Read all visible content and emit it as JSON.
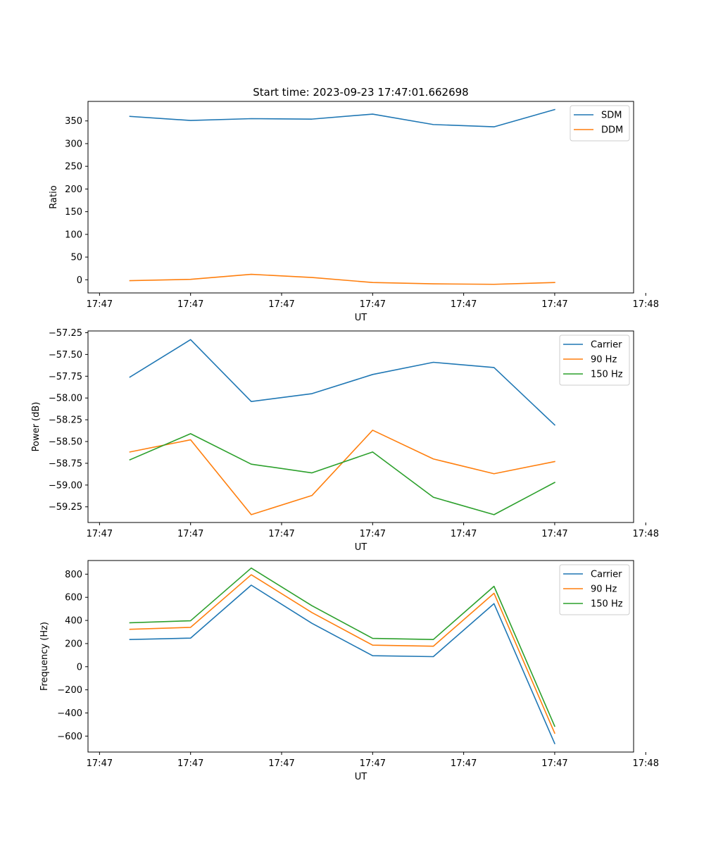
{
  "figure": {
    "title": "Start time: 2023-09-23 17:47:01.662698"
  },
  "chart_data": [
    {
      "type": "line",
      "title": "Start time: 2023-09-23 17:47:01.662698",
      "xlabel": "UT",
      "ylabel": "Ratio",
      "x": [
        1,
        2,
        3,
        4,
        5,
        6,
        7,
        8
      ],
      "xlim": [
        0.31,
        9.3
      ],
      "xticks": [
        0.5,
        2.0,
        3.5,
        5.0,
        6.5,
        8.0,
        9.5
      ],
      "xtick_labels": [
        "17:47",
        "17:47",
        "17:47",
        "17:47",
        "17:47",
        "17:47",
        "17:48"
      ],
      "ylim": [
        -29,
        393
      ],
      "yticks": [
        0,
        50,
        100,
        150,
        200,
        250,
        300,
        350
      ],
      "ytick_labels": [
        "0",
        "50",
        "100",
        "150",
        "200",
        "250",
        "300",
        "350"
      ],
      "legend": "top-right",
      "grid": false,
      "series": [
        {
          "name": "SDM",
          "color": "#1f77b4",
          "values": [
            360,
            351,
            355,
            354,
            365,
            342,
            337,
            375
          ]
        },
        {
          "name": "DDM",
          "color": "#ff7f0e",
          "values": [
            -2,
            1,
            12,
            5,
            -6,
            -9,
            -10,
            -6
          ]
        }
      ]
    },
    {
      "type": "line",
      "xlabel": "UT",
      "ylabel": "Power (dB)",
      "x": [
        1,
        2,
        3,
        4,
        5,
        6,
        7,
        8
      ],
      "xlim": [
        0.31,
        9.3
      ],
      "xticks": [
        0.5,
        2.0,
        3.5,
        5.0,
        6.5,
        8.0,
        9.5
      ],
      "xtick_labels": [
        "17:47",
        "17:47",
        "17:47",
        "17:47",
        "17:47",
        "17:47",
        "17:48"
      ],
      "ylim": [
        -59.43,
        -57.23
      ],
      "yticks": [
        -57.25,
        -57.5,
        -57.75,
        -58.0,
        -58.25,
        -58.5,
        -58.75,
        -59.0,
        -59.25
      ],
      "ytick_labels": [
        "−57.25",
        "−57.50",
        "−57.75",
        "−58.00",
        "−58.25",
        "−58.50",
        "−58.75",
        "−59.00",
        "−59.25"
      ],
      "legend": "top-right",
      "grid": false,
      "series": [
        {
          "name": "Carrier",
          "color": "#1f77b4",
          "values": [
            -57.76,
            -57.33,
            -58.04,
            -57.95,
            -57.73,
            -57.59,
            -57.65,
            -58.31
          ]
        },
        {
          "name": "90 Hz",
          "color": "#ff7f0e",
          "values": [
            -58.62,
            -58.48,
            -59.34,
            -59.12,
            -58.37,
            -58.7,
            -58.87,
            -58.73
          ]
        },
        {
          "name": "150 Hz",
          "color": "#2ca02c",
          "values": [
            -58.71,
            -58.41,
            -58.76,
            -58.86,
            -58.62,
            -59.14,
            -59.34,
            -58.97
          ]
        }
      ]
    },
    {
      "type": "line",
      "xlabel": "UT",
      "ylabel": "Frequency (Hz)",
      "x": [
        1,
        2,
        3,
        4,
        5,
        6,
        7,
        8
      ],
      "xlim": [
        0.31,
        9.3
      ],
      "xticks": [
        0.5,
        2.0,
        3.5,
        5.0,
        6.5,
        8.0,
        9.5
      ],
      "xtick_labels": [
        "17:47",
        "17:47",
        "17:47",
        "17:47",
        "17:47",
        "17:47",
        "17:48"
      ],
      "ylim": [
        -738,
        918
      ],
      "yticks": [
        800,
        600,
        400,
        200,
        0,
        -200,
        -400,
        -600
      ],
      "ytick_labels": [
        "800",
        "600",
        "400",
        "200",
        "0",
        "−200",
        "−400",
        "−600"
      ],
      "legend": "top-right",
      "grid": false,
      "series": [
        {
          "name": "Carrier",
          "color": "#1f77b4",
          "values": [
            235,
            247,
            705,
            375,
            95,
            87,
            545,
            -665
          ]
        },
        {
          "name": "90 Hz",
          "color": "#ff7f0e",
          "values": [
            323,
            340,
            795,
            468,
            186,
            177,
            635,
            -575
          ]
        },
        {
          "name": "150 Hz",
          "color": "#2ca02c",
          "values": [
            380,
            397,
            853,
            527,
            245,
            235,
            695,
            -515
          ]
        }
      ]
    }
  ]
}
